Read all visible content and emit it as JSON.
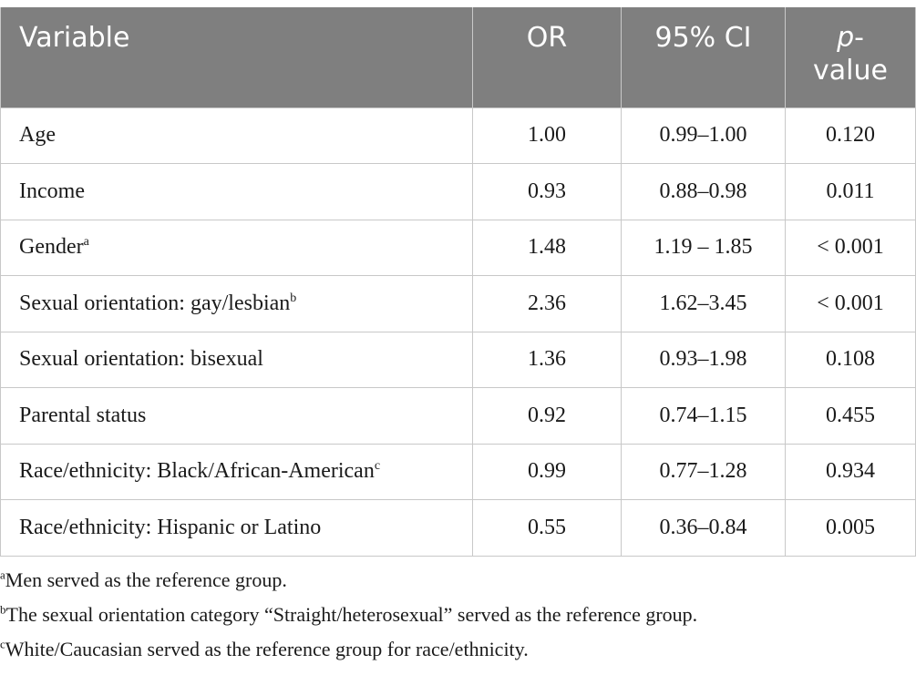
{
  "table": {
    "headers": {
      "variable": "Variable",
      "or": "OR",
      "ci": "95% CI",
      "p_italic": "p",
      "p_rest": "-",
      "p_line2": "value"
    },
    "rows": [
      {
        "variable": "Age",
        "sup": "",
        "or": "1.00",
        "ci": "0.99–1.00",
        "p": "0.120"
      },
      {
        "variable": "Income",
        "sup": "",
        "or": "0.93",
        "ci": "0.88–0.98",
        "p": "0.011"
      },
      {
        "variable": "Gender",
        "sup": "a",
        "or": "1.48",
        "ci": "1.19 – 1.85",
        "p": "< 0.001"
      },
      {
        "variable": "Sexual orientation: gay/lesbian",
        "sup": "b",
        "or": "2.36",
        "ci": "1.62–3.45",
        "p": "< 0.001"
      },
      {
        "variable": "Sexual orientation: bisexual",
        "sup": "",
        "or": "1.36",
        "ci": "0.93–1.98",
        "p": "0.108"
      },
      {
        "variable": "Parental status",
        "sup": "",
        "or": "0.92",
        "ci": "0.74–1.15",
        "p": "0.455"
      },
      {
        "variable": "Race/ethnicity: Black/African-American",
        "sup": "c",
        "or": "0.99",
        "ci": "0.77–1.28",
        "p": "0.934"
      },
      {
        "variable": "Race/ethnicity: Hispanic or Latino",
        "sup": "",
        "or": "0.55",
        "ci": "0.36–0.84",
        "p": "0.005"
      }
    ]
  },
  "notes": [
    {
      "mark": "a",
      "text": "Men served as the reference group."
    },
    {
      "mark": "b",
      "text": "The sexual orientation category “Straight/heterosexual” served as the reference group."
    },
    {
      "mark": "c",
      "text": "White/Caucasian served as the reference group for race/ethnicity."
    }
  ]
}
